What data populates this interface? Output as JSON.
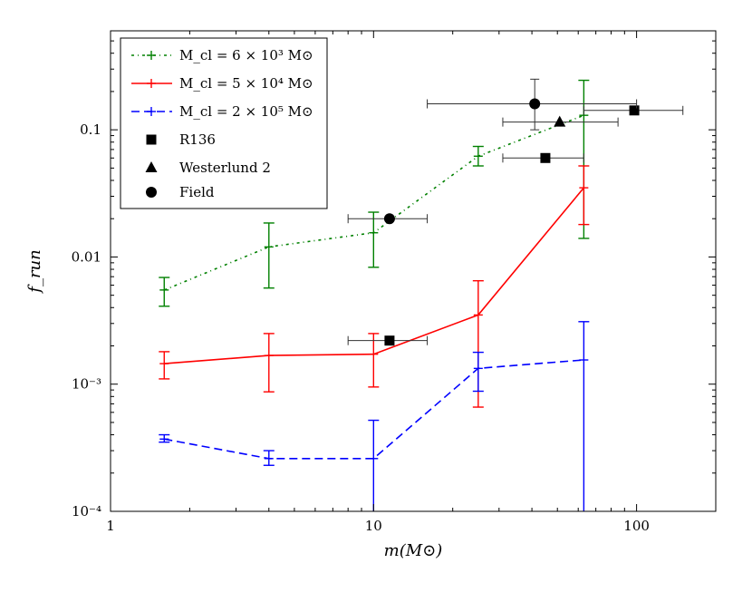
{
  "chart_data": {
    "type": "line",
    "xscale": "log",
    "yscale": "log",
    "xlim": [
      1,
      200
    ],
    "ylim": [
      0.0001,
      0.6
    ],
    "xlabel": "m(M⊙)",
    "ylabel": "f_run",
    "xticks": [
      {
        "value": 1,
        "label": "1"
      },
      {
        "value": 10,
        "label": "10"
      },
      {
        "value": 100,
        "label": "100"
      }
    ],
    "yticks": [
      {
        "value": 0.0001,
        "label": "10⁻⁴"
      },
      {
        "value": 0.001,
        "label": "10⁻³"
      },
      {
        "value": 0.01,
        "label": "0.01"
      },
      {
        "value": 0.1,
        "label": "0.1"
      }
    ],
    "series": [
      {
        "name": "M_cl = 6 × 10³ M⊙",
        "color": "#008000",
        "dash": "dashdot",
        "points": [
          {
            "x": 1.6,
            "y": 0.0055,
            "ylo": 0.0041,
            "yhi": 0.0069
          },
          {
            "x": 4.0,
            "y": 0.012,
            "ylo": 0.0057,
            "yhi": 0.0185
          },
          {
            "x": 10.0,
            "y": 0.0155,
            "ylo": 0.0083,
            "yhi": 0.0225
          },
          {
            "x": 25.0,
            "y": 0.062,
            "ylo": 0.052,
            "yhi": 0.074
          },
          {
            "x": 63.0,
            "y": 0.13,
            "ylo": 0.014,
            "yhi": 0.245
          }
        ]
      },
      {
        "name": "M_cl = 5 × 10⁴ M⊙",
        "color": "#ff0000",
        "dash": "solid",
        "points": [
          {
            "x": 1.6,
            "y": 0.00145,
            "ylo": 0.0011,
            "yhi": 0.0018
          },
          {
            "x": 4.0,
            "y": 0.00168,
            "ylo": 0.00087,
            "yhi": 0.0025
          },
          {
            "x": 10.0,
            "y": 0.00172,
            "ylo": 0.00095,
            "yhi": 0.0025
          },
          {
            "x": 25.0,
            "y": 0.0035,
            "ylo": 0.00066,
            "yhi": 0.0065
          },
          {
            "x": 63.0,
            "y": 0.035,
            "ylo": 0.018,
            "yhi": 0.052
          }
        ]
      },
      {
        "name": "M_cl = 2 × 10⁵ M⊙",
        "color": "#0000ff",
        "dash": "dashed",
        "points": [
          {
            "x": 1.6,
            "y": 0.00037,
            "ylo": 0.00035,
            "yhi": 0.0004
          },
          {
            "x": 4.0,
            "y": 0.00026,
            "ylo": 0.00023,
            "yhi": 0.0003
          },
          {
            "x": 10.0,
            "y": 0.00026,
            "ylo": 0.0001,
            "yhi": 0.00052
          },
          {
            "x": 25.0,
            "y": 0.00133,
            "ylo": 0.00088,
            "yhi": 0.00178
          },
          {
            "x": 63.0,
            "y": 0.00155,
            "ylo": 0.0001,
            "yhi": 0.0031
          }
        ]
      }
    ],
    "observations": [
      {
        "name": "R136",
        "marker": "square",
        "points": [
          {
            "x": 11.5,
            "y": 0.0022,
            "xlo": 8.0,
            "xhi": 16.0
          },
          {
            "x": 45.0,
            "y": 0.06,
            "xlo": 31.0,
            "xhi": 63.0
          },
          {
            "x": 98.0,
            "y": 0.142,
            "xlo": 63.0,
            "xhi": 150.0
          }
        ]
      },
      {
        "name": "Westerlund 2",
        "marker": "triangle",
        "points": [
          {
            "x": 51.0,
            "y": 0.115,
            "xlo": 31.0,
            "xhi": 85.0
          }
        ]
      },
      {
        "name": "Field",
        "marker": "circle",
        "points": [
          {
            "x": 11.5,
            "y": 0.02,
            "xlo": 8.0,
            "xhi": 16.0
          },
          {
            "x": 41.0,
            "y": 0.16,
            "xlo": 16.0,
            "xhi": 100.0,
            "ylo": 0.1,
            "yhi": 0.25
          }
        ]
      }
    ],
    "legend": {
      "placement": "top-left",
      "entries": [
        {
          "label": "M_cl = 6 × 10³ M⊙"
        },
        {
          "label": "M_cl = 5 × 10⁴ M⊙"
        },
        {
          "label": "M_cl = 2 × 10⁵ M⊙"
        },
        {
          "label": "R136"
        },
        {
          "label": "Westerlund 2"
        },
        {
          "label": "Field"
        }
      ]
    }
  }
}
